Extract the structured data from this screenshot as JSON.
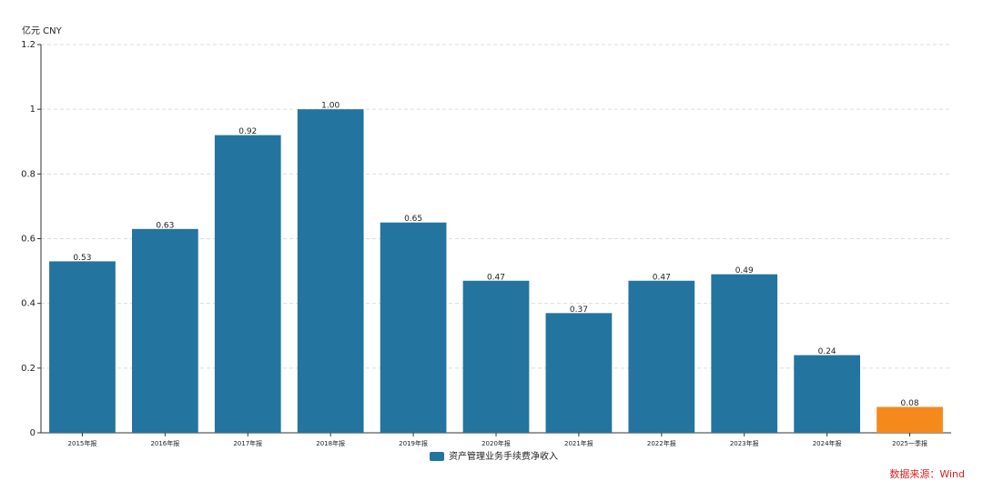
{
  "chart_data": {
    "type": "bar",
    "y_label": "亿元  CNY",
    "categories": [
      "2015年报",
      "2016年报",
      "2017年报",
      "2018年报",
      "2019年报",
      "2020年报",
      "2021年报",
      "2022年报",
      "2023年报",
      "2024年报",
      "2025一季报"
    ],
    "series": [
      {
        "name": "资产管理业务手续费净收入",
        "color": "#23749f",
        "values": [
          0.53,
          0.63,
          0.92,
          1.0,
          0.65,
          0.47,
          0.37,
          0.47,
          0.49,
          0.24,
          0.08
        ],
        "value_labels": [
          "0.53",
          "0.63",
          "0.92",
          "1.00",
          "0.65",
          "0.47",
          "0.37",
          "0.47",
          "0.49",
          "0.24",
          "0.08"
        ],
        "colors": [
          "#23749f",
          "#23749f",
          "#23749f",
          "#23749f",
          "#23749f",
          "#23749f",
          "#23749f",
          "#23749f",
          "#23749f",
          "#23749f",
          "#f5891c"
        ]
      }
    ],
    "ylim": [
      0,
      1.2
    ],
    "yticks": [
      0,
      0.2,
      0.4,
      0.6,
      0.8,
      1,
      1.2
    ],
    "grid": true,
    "source": "数据来源：Wind"
  }
}
